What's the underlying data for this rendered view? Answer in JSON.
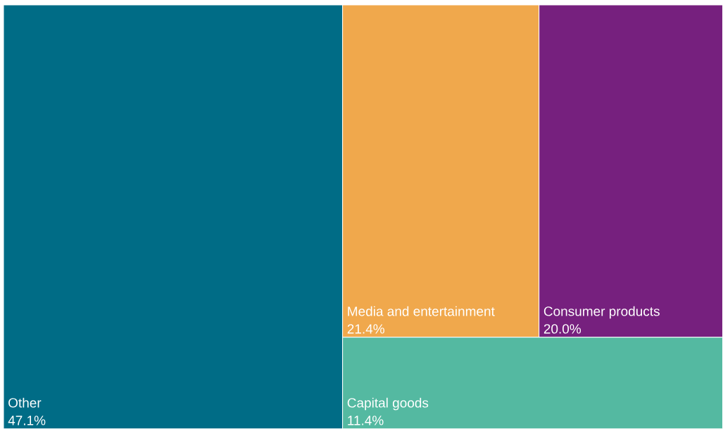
{
  "chart_data": {
    "type": "other",
    "categories": [
      "Other",
      "Media and entertainment",
      "Consumer products",
      "Capital goods"
    ],
    "values": [
      47.1,
      21.4,
      20.0,
      11.4
    ],
    "value_labels": [
      "47.1%",
      "21.4%",
      "20.0%",
      "11.4%"
    ],
    "colors": [
      "#006c86",
      "#f0a84c",
      "#76207e",
      "#54b9a1"
    ]
  }
}
